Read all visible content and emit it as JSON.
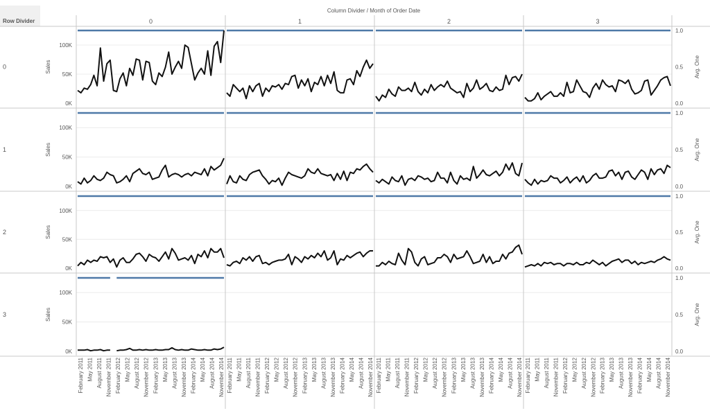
{
  "header": {
    "row_shelf_label": "Row Divider",
    "column_title": "Column Divider / Month of Order Date"
  },
  "colors": {
    "sales_line": "#111111",
    "avg_one_line": "#4e79a7",
    "row_header_bg": "#f0f0f0",
    "grid": "#ececec",
    "divider": "#c8c8c8"
  },
  "chart_data": {
    "type": "line",
    "layout": "trellis",
    "column_headers": [
      "0",
      "1",
      "2",
      "3"
    ],
    "row_headers": [
      "0",
      "1",
      "2",
      "3"
    ],
    "left_axis": {
      "label": "Sales",
      "ticks": [
        "0K",
        "50K",
        "100K"
      ],
      "tick_values": [
        0,
        50000,
        100000
      ],
      "range": [
        0,
        125000
      ]
    },
    "right_axis": {
      "label": "Avg. One",
      "ticks": [
        "0.0",
        "0.5",
        "1.0"
      ],
      "tick_values": [
        0,
        0.5,
        1.0
      ],
      "range": [
        0,
        1.0
      ]
    },
    "x_tick_labels": [
      "February 2011",
      "May 2011",
      "August 2011",
      "November 2011",
      "February 2012",
      "May 2012",
      "August 2012",
      "November 2012",
      "February 2013",
      "May 2013",
      "August 2013",
      "November 2013",
      "February 2014",
      "May 2014",
      "August 2014",
      "November 2014"
    ],
    "series": [
      {
        "name": "Sales",
        "axis": "left",
        "color": "#111111"
      },
      {
        "name": "Avg. One",
        "axis": "right",
        "color": "#4e79a7",
        "value": 1.0
      }
    ],
    "panels": [
      {
        "row": "0",
        "col": "0",
        "sales": [
          22000,
          18000,
          26000,
          24000,
          32000,
          48000,
          30000,
          95000,
          38000,
          68000,
          74000,
          22000,
          20000,
          42000,
          52000,
          30000,
          60000,
          48000,
          76000,
          74000,
          40000,
          72000,
          70000,
          38000,
          32000,
          52000,
          46000,
          62000,
          88000,
          50000,
          62000,
          72000,
          60000,
          100000,
          96000,
          68000,
          40000,
          52000,
          60000,
          50000,
          90000,
          48000,
          98000,
          106000,
          70000,
          125000
        ]
      },
      {
        "row": "0",
        "col": "1",
        "sales": [
          18000,
          12000,
          32000,
          26000,
          20000,
          26000,
          8000,
          30000,
          20000,
          30000,
          34000,
          12000,
          26000,
          20000,
          30000,
          28000,
          32000,
          24000,
          34000,
          32000,
          46000,
          48000,
          26000,
          40000,
          30000,
          42000,
          20000,
          36000,
          32000,
          46000,
          30000,
          48000,
          34000,
          54000,
          22000,
          18000,
          18000,
          40000,
          42000,
          32000,
          56000,
          46000,
          62000,
          74000,
          60000,
          68000
        ]
      },
      {
        "row": "0",
        "col": "2",
        "sales": [
          12000,
          4000,
          14000,
          10000,
          24000,
          16000,
          12000,
          28000,
          22000,
          22000,
          26000,
          20000,
          36000,
          20000,
          14000,
          24000,
          18000,
          32000,
          22000,
          28000,
          32000,
          28000,
          38000,
          26000,
          22000,
          18000,
          20000,
          10000,
          34000,
          20000,
          26000,
          40000,
          24000,
          28000,
          34000,
          22000,
          20000,
          28000,
          22000,
          24000,
          48000,
          32000,
          44000,
          46000,
          38000,
          50000
        ]
      },
      {
        "row": "0",
        "col": "3",
        "sales": [
          10000,
          4000,
          4000,
          8000,
          18000,
          6000,
          12000,
          16000,
          20000,
          12000,
          12000,
          18000,
          12000,
          36000,
          18000,
          20000,
          40000,
          30000,
          20000,
          18000,
          10000,
          26000,
          34000,
          24000,
          40000,
          32000,
          28000,
          30000,
          20000,
          40000,
          38000,
          34000,
          40000,
          24000,
          16000,
          18000,
          22000,
          38000,
          40000,
          14000,
          22000,
          30000,
          40000,
          44000,
          46000,
          30000
        ]
      },
      {
        "row": "1",
        "col": "0",
        "sales": [
          8000,
          4000,
          14000,
          6000,
          10000,
          18000,
          12000,
          10000,
          14000,
          24000,
          20000,
          18000,
          6000,
          8000,
          12000,
          18000,
          8000,
          22000,
          26000,
          30000,
          22000,
          20000,
          24000,
          12000,
          14000,
          16000,
          28000,
          36000,
          16000,
          20000,
          22000,
          20000,
          16000,
          20000,
          22000,
          18000,
          24000,
          22000,
          20000,
          30000,
          18000,
          34000,
          28000,
          32000,
          36000,
          48000
        ]
      },
      {
        "row": "1",
        "col": "1",
        "sales": [
          4000,
          18000,
          8000,
          6000,
          18000,
          12000,
          10000,
          20000,
          24000,
          26000,
          28000,
          18000,
          12000,
          4000,
          10000,
          8000,
          14000,
          2000,
          14000,
          24000,
          20000,
          18000,
          16000,
          14000,
          18000,
          30000,
          24000,
          22000,
          30000,
          22000,
          20000,
          18000,
          20000,
          10000,
          22000,
          12000,
          26000,
          10000,
          24000,
          22000,
          30000,
          28000,
          34000,
          38000,
          30000,
          24000
        ]
      },
      {
        "row": "1",
        "col": "2",
        "sales": [
          10000,
          6000,
          12000,
          8000,
          4000,
          16000,
          10000,
          8000,
          18000,
          2000,
          12000,
          14000,
          10000,
          18000,
          16000,
          12000,
          14000,
          8000,
          10000,
          24000,
          14000,
          14000,
          6000,
          24000,
          10000,
          4000,
          18000,
          12000,
          14000,
          10000,
          34000,
          14000,
          20000,
          28000,
          20000,
          18000,
          22000,
          26000,
          18000,
          24000,
          38000,
          28000,
          40000,
          22000,
          18000,
          40000
        ]
      },
      {
        "row": "1",
        "col": "3",
        "sales": [
          12000,
          6000,
          2000,
          12000,
          4000,
          10000,
          8000,
          10000,
          18000,
          14000,
          14000,
          6000,
          10000,
          16000,
          6000,
          12000,
          16000,
          8000,
          18000,
          6000,
          10000,
          18000,
          22000,
          14000,
          14000,
          16000,
          26000,
          28000,
          18000,
          24000,
          12000,
          24000,
          26000,
          16000,
          12000,
          20000,
          28000,
          24000,
          12000,
          30000,
          20000,
          28000,
          30000,
          22000,
          36000,
          32000
        ]
      },
      {
        "row": "2",
        "col": "0",
        "sales": [
          4000,
          10000,
          6000,
          14000,
          10000,
          14000,
          12000,
          20000,
          18000,
          20000,
          10000,
          16000,
          2000,
          14000,
          18000,
          10000,
          10000,
          16000,
          24000,
          26000,
          20000,
          12000,
          24000,
          20000,
          18000,
          12000,
          20000,
          28000,
          16000,
          34000,
          26000,
          14000,
          16000,
          18000,
          14000,
          22000,
          8000,
          24000,
          20000,
          30000,
          18000,
          34000,
          28000,
          28000,
          34000,
          18000
        ]
      },
      {
        "row": "2",
        "col": "1",
        "sales": [
          6000,
          4000,
          10000,
          12000,
          8000,
          18000,
          14000,
          20000,
          12000,
          20000,
          22000,
          8000,
          10000,
          6000,
          10000,
          12000,
          14000,
          14000,
          16000,
          24000,
          6000,
          20000,
          16000,
          10000,
          20000,
          16000,
          22000,
          18000,
          26000,
          20000,
          30000,
          14000,
          18000,
          30000,
          6000,
          16000,
          14000,
          22000,
          18000,
          22000,
          26000,
          28000,
          20000,
          26000,
          30000,
          30000
        ]
      },
      {
        "row": "2",
        "col": "2",
        "sales": [
          4000,
          4000,
          10000,
          6000,
          12000,
          8000,
          6000,
          26000,
          14000,
          6000,
          34000,
          28000,
          10000,
          4000,
          16000,
          20000,
          6000,
          8000,
          10000,
          18000,
          18000,
          24000,
          20000,
          10000,
          24000,
          16000,
          18000,
          20000,
          30000,
          20000,
          8000,
          10000,
          12000,
          24000,
          10000,
          20000,
          8000,
          12000,
          12000,
          24000,
          16000,
          26000,
          28000,
          36000,
          40000,
          24000
        ]
      },
      {
        "row": "2",
        "col": "3",
        "sales": [
          2000,
          4000,
          6000,
          4000,
          8000,
          4000,
          10000,
          8000,
          10000,
          6000,
          8000,
          8000,
          4000,
          8000,
          8000,
          6000,
          10000,
          6000,
          6000,
          10000,
          8000,
          14000,
          10000,
          6000,
          10000,
          4000,
          8000,
          12000,
          14000,
          16000,
          10000,
          14000,
          14000,
          8000,
          12000,
          6000,
          10000,
          8000,
          10000,
          12000,
          10000,
          14000,
          16000,
          20000,
          16000,
          14000
        ]
      },
      {
        "row": "3",
        "col": "0",
        "sales": [
          2000,
          2000,
          2000,
          3000,
          1000,
          2000,
          2000,
          3000,
          1000,
          2000,
          2000,
          null,
          1000,
          2000,
          2000,
          3000,
          5000,
          2000,
          2000,
          3000,
          2000,
          3000,
          2000,
          2000,
          3000,
          2000,
          2000,
          3000,
          3000,
          6000,
          3000,
          2000,
          3000,
          2000,
          2000,
          4000,
          3000,
          2000,
          2000,
          3000,
          2000,
          2000,
          4000,
          3000,
          4000,
          7000
        ]
      }
    ]
  }
}
